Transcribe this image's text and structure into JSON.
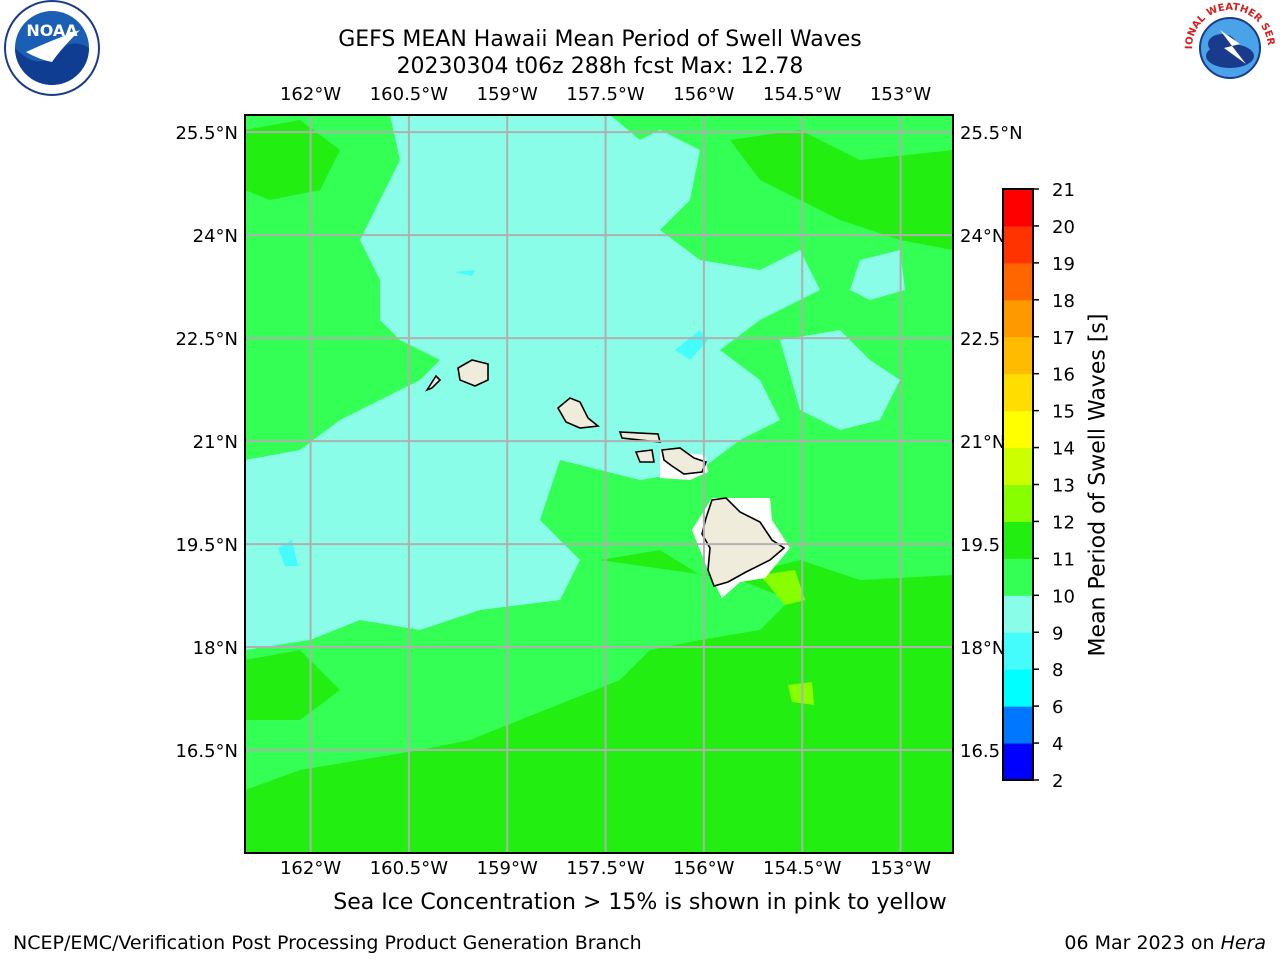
{
  "title": {
    "line1": "GEFS MEAN Hawaii Mean Period of Swell Waves",
    "line2": "20230304 t06z 288h fcst   Max: 12.78"
  },
  "subtitle": "Sea Ice Concentration > 15% is shown in pink to yellow",
  "footer": {
    "left": "NCEP/EMC/Verification Post Processing Product Generation Branch",
    "date": "06 Mar 2023 on ",
    "host": "Hera"
  },
  "map": {
    "lon_labels": [
      "162°W",
      "160.5°W",
      "159°W",
      "157.5°W",
      "156°W",
      "154.5°W",
      "153°W"
    ],
    "lat_labels": [
      "25.5°N",
      "24°N",
      "22.5°N",
      "21°N",
      "19.5°N",
      "18°N",
      "16.5°N"
    ],
    "lon_values": [
      -162,
      -160.5,
      -159,
      -157.5,
      -156,
      -154.5,
      -153
    ],
    "lat_values": [
      25.5,
      24,
      22.5,
      21,
      19.5,
      18,
      16.5
    ],
    "extent": {
      "lon": [
        -163,
        -152.2
      ],
      "lat": [
        15,
        25.75
      ]
    },
    "land_color": "#f0ecdc",
    "grid_color": "#b0b0b0"
  },
  "colorbar": {
    "label": "Mean Period of Swell Waves [s]",
    "tick_labels": [
      "2",
      "4",
      "6",
      "8",
      "9",
      "10",
      "11",
      "12",
      "13",
      "14",
      "15",
      "16",
      "17",
      "18",
      "19",
      "20",
      "21"
    ],
    "colors": [
      "#0000ff",
      "#0077ff",
      "#00ffff",
      "#44fcfc",
      "#8afde8",
      "#33ff55",
      "#22ee11",
      "#88ff00",
      "#ccff00",
      "#ffff00",
      "#ffdd00",
      "#ffbb00",
      "#ff9900",
      "#ff6600",
      "#ff3300",
      "#ff0000"
    ]
  },
  "logos": {
    "noaa": {
      "text": "NOAA",
      "icon": "noaa-logo-icon"
    },
    "nws": {
      "text": "NATIONAL WEATHER SERVICE",
      "icon": "nws-logo-icon"
    }
  }
}
